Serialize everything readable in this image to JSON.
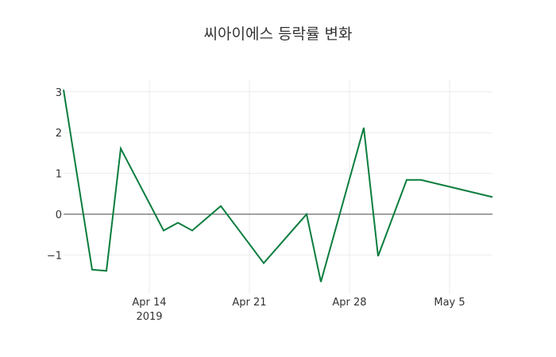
{
  "chart_data": {
    "type": "line",
    "title": "씨아이에스 등락률 변화",
    "xlabel": "",
    "ylabel": "",
    "x": [
      "2019-04-08",
      "2019-04-10",
      "2019-04-11",
      "2019-04-12",
      "2019-04-15",
      "2019-04-16",
      "2019-04-17",
      "2019-04-19",
      "2019-04-22",
      "2019-04-25",
      "2019-04-26",
      "2019-04-29",
      "2019-04-30",
      "2019-05-02",
      "2019-05-03",
      "2019-05-08"
    ],
    "series": [
      {
        "name": "등락률",
        "color": "#0a7d3e",
        "values": [
          3.05,
          -1.36,
          -1.39,
          1.61,
          -0.4,
          -0.21,
          -0.4,
          0.2,
          -1.2,
          0.0,
          -1.66,
          2.12,
          -1.03,
          0.84,
          0.84,
          0.42
        ]
      }
    ],
    "x_ticks": [
      {
        "date": "2019-04-14",
        "label": "Apr 14",
        "sublabel": "2019"
      },
      {
        "date": "2019-04-21",
        "label": "Apr 21",
        "sublabel": ""
      },
      {
        "date": "2019-04-28",
        "label": "Apr 28",
        "sublabel": ""
      },
      {
        "date": "2019-05-05",
        "label": "May 5",
        "sublabel": ""
      }
    ],
    "y_ticks": [
      3,
      2,
      1,
      0,
      -1
    ],
    "y_tick_labels": [
      "3",
      "2",
      "1",
      "0",
      "−1"
    ],
    "ylim": [
      -1.95,
      3.3
    ],
    "xlim": [
      "2019-04-08",
      "2019-05-08"
    ],
    "grid": true,
    "zeroline": true,
    "legend": false
  }
}
